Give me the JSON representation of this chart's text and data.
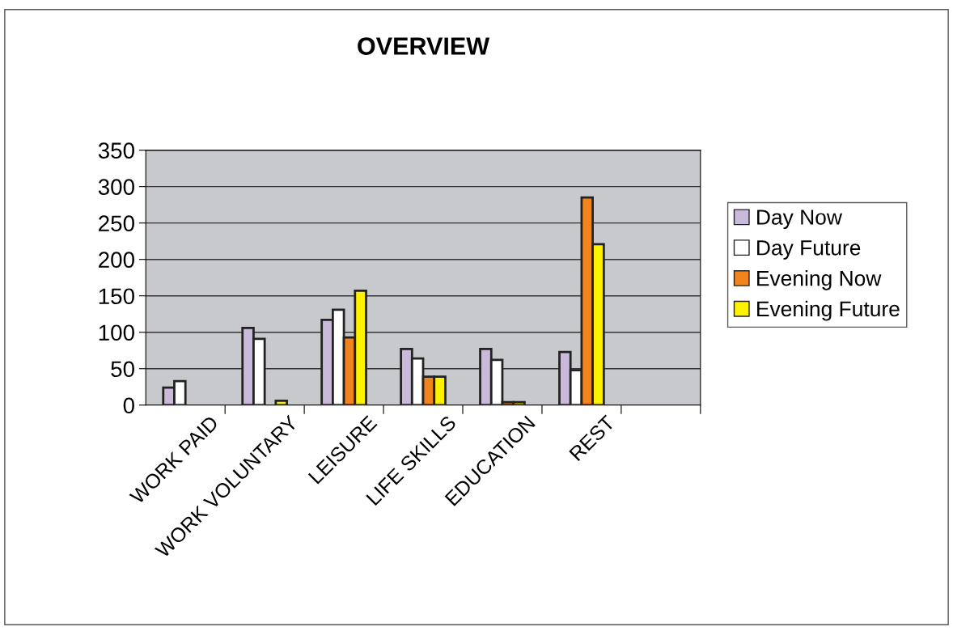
{
  "chart_data": {
    "type": "bar",
    "title": "OVERVIEW",
    "categories": [
      "WORK PAID",
      "WORK VOLUNTARY",
      "LEISURE",
      "LIFE SKILLS",
      "EDUCATION",
      "REST",
      null
    ],
    "series": [
      {
        "name": "Day Now",
        "color": "#c9b9da",
        "values": [
          24,
          106,
          117,
          77,
          77,
          73,
          null
        ]
      },
      {
        "name": "Day Future",
        "color": "#ffffff",
        "values": [
          33,
          91,
          131,
          64,
          62,
          48,
          null
        ]
      },
      {
        "name": "Evening Now",
        "color": "#f2841e",
        "values": [
          null,
          null,
          93,
          39,
          4,
          285,
          null
        ]
      },
      {
        "name": "Evening Future",
        "color": "#fff200",
        "values": [
          null,
          6,
          157,
          39,
          4,
          221,
          null
        ]
      }
    ],
    "ylim": [
      0,
      350
    ],
    "yticks": [
      0,
      50,
      100,
      150,
      200,
      250,
      300,
      350
    ],
    "grid": "y",
    "legend": "right"
  }
}
